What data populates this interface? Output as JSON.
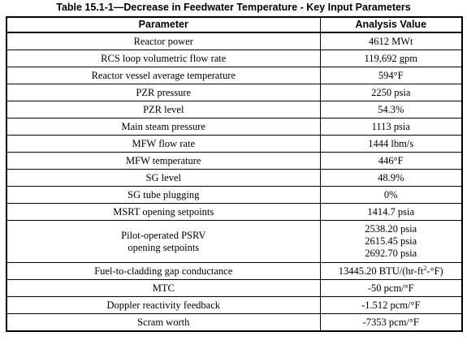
{
  "table": {
    "caption": "Table 15.1-1—Decrease in Feedwater Temperature - Key Input Parameters",
    "headers": [
      "Parameter",
      "Analysis Value"
    ],
    "rows": [
      {
        "parameter": "Reactor power",
        "value": "4612 MWt"
      },
      {
        "parameter": "RCS loop volumetric flow rate",
        "value": "119,692 gpm"
      },
      {
        "parameter": "Reactor vessel average temperature",
        "value": "594°F"
      },
      {
        "parameter": "PZR pressure",
        "value": "2250 psia"
      },
      {
        "parameter": "PZR level",
        "value": "54.3%"
      },
      {
        "parameter": "Main steam pressure",
        "value": "1113 psia"
      },
      {
        "parameter": "MFW flow rate",
        "value": "1444 lbm/s"
      },
      {
        "parameter": "MFW temperature",
        "value": "446°F"
      },
      {
        "parameter": "SG level",
        "value": "48.9%"
      },
      {
        "parameter": "SG tube plugging",
        "value": "0%"
      },
      {
        "parameter": "MSRT opening setpoints",
        "value": "1414.7 psia"
      }
    ],
    "psrv_row": {
      "parameter_line1": "Pilot-operated PSRV",
      "parameter_line2": "opening setpoints",
      "values": [
        "2538.20 psia",
        "2615.45 psia",
        "2692.70 psia"
      ]
    },
    "gap_row": {
      "parameter": "Fuel-to-cladding gap conductance",
      "value_prefix": "13445.20 BTU/(hr-ft",
      "value_sup": "2",
      "value_suffix": "-°F)"
    },
    "tail_rows": [
      {
        "parameter": "MTC",
        "value": "-50 pcm/°F"
      },
      {
        "parameter": "Doppler reactivity feedback",
        "value": "-1.512 pcm/°F"
      },
      {
        "parameter": "Scram worth",
        "value": "-7353 pcm/°F"
      }
    ]
  }
}
